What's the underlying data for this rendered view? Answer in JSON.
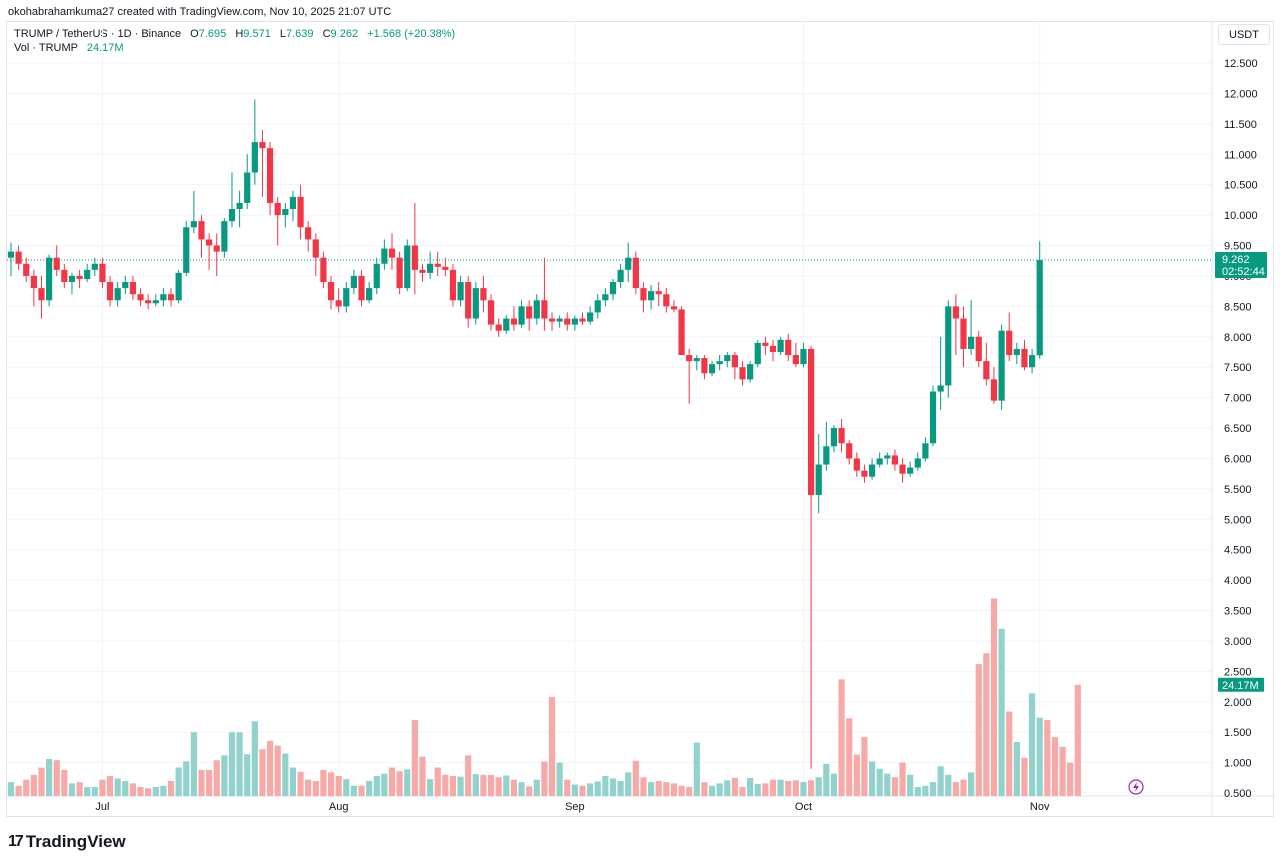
{
  "header": {
    "attribution": "okohabrahamkuma27 created with TradingView.com, Nov 10, 2025 21:07 UTC"
  },
  "legend": {
    "symbol": "TRUMP / TetherUS · 1D · Binance",
    "o_label": "O",
    "o_value": "7.695",
    "h_label": "H",
    "h_value": "9.571",
    "l_label": "L",
    "l_value": "7.639",
    "c_label": "C",
    "c_value": "9.262",
    "change": "+1.568 (+20.38%)",
    "vol_label": "Vol · TRUMP",
    "vol_value": "24.17M"
  },
  "unit_button": "USDT",
  "brand": {
    "name": "TradingView",
    "logo_text": "17"
  },
  "colors": {
    "up": "#089981",
    "down": "#f23645",
    "vol_up": "#92d2cc",
    "vol_down": "#f7a9a7"
  },
  "chart_data": {
    "type": "candlestick",
    "y_ticks": [
      "12.500",
      "12.000",
      "11.500",
      "11.000",
      "10.500",
      "10.000",
      "9.500",
      "9.000",
      "8.500",
      "8.000",
      "7.500",
      "7.000",
      "6.500",
      "6.000",
      "5.500",
      "5.000",
      "4.500",
      "4.000",
      "3.500",
      "3.000",
      "2.500",
      "2.000",
      "1.500",
      "1.000",
      "0.500"
    ],
    "ylim": [
      0.4,
      12.9
    ],
    "x_ticks": [
      {
        "label": "Jul",
        "index": 12
      },
      {
        "label": "Aug",
        "index": 43
      },
      {
        "label": "Sep",
        "index": 74
      },
      {
        "label": "Oct",
        "index": 104
      },
      {
        "label": "Nov",
        "index": 135
      }
    ],
    "last_price": {
      "value": 9.262,
      "label": "9.262",
      "countdown": "02:52:44"
    },
    "last_volume": {
      "value": 2.28,
      "label": "24.17M"
    },
    "ohlc": [
      [
        9.3,
        9.55,
        9.0,
        9.4
      ],
      [
        9.4,
        9.5,
        9.1,
        9.2
      ],
      [
        9.2,
        9.3,
        8.9,
        9.0
      ],
      [
        9.0,
        9.1,
        8.5,
        8.8
      ],
      [
        8.8,
        9.0,
        8.3,
        8.6
      ],
      [
        8.6,
        9.35,
        8.5,
        9.3
      ],
      [
        9.3,
        9.5,
        9.0,
        9.1
      ],
      [
        9.1,
        9.2,
        8.8,
        8.9
      ],
      [
        8.9,
        9.05,
        8.7,
        9.0
      ],
      [
        9.0,
        9.1,
        8.8,
        8.95
      ],
      [
        8.95,
        9.2,
        8.9,
        9.1
      ],
      [
        9.1,
        9.3,
        9.0,
        9.2
      ],
      [
        9.2,
        9.3,
        8.8,
        8.9
      ],
      [
        8.9,
        9.0,
        8.5,
        8.6
      ],
      [
        8.6,
        8.9,
        8.5,
        8.8
      ],
      [
        8.8,
        9.0,
        8.7,
        8.9
      ],
      [
        8.9,
        9.0,
        8.6,
        8.7
      ],
      [
        8.7,
        8.8,
        8.5,
        8.6
      ],
      [
        8.6,
        8.7,
        8.45,
        8.55
      ],
      [
        8.55,
        8.7,
        8.5,
        8.6
      ],
      [
        8.6,
        8.8,
        8.5,
        8.7
      ],
      [
        8.7,
        8.8,
        8.5,
        8.6
      ],
      [
        8.6,
        9.1,
        8.55,
        9.05
      ],
      [
        9.05,
        9.9,
        9.0,
        9.8
      ],
      [
        9.8,
        10.4,
        9.7,
        9.9
      ],
      [
        9.9,
        10.0,
        9.3,
        9.6
      ],
      [
        9.6,
        9.7,
        9.1,
        9.5
      ],
      [
        9.5,
        9.7,
        9.0,
        9.4
      ],
      [
        9.4,
        9.95,
        9.3,
        9.9
      ],
      [
        9.9,
        10.7,
        9.8,
        10.1
      ],
      [
        10.1,
        10.4,
        9.8,
        10.2
      ],
      [
        10.2,
        11.0,
        10.1,
        10.7
      ],
      [
        10.7,
        11.9,
        10.5,
        11.2
      ],
      [
        11.2,
        11.4,
        10.3,
        11.1
      ],
      [
        11.1,
        11.2,
        10.0,
        10.2
      ],
      [
        10.2,
        10.3,
        9.5,
        10.0
      ],
      [
        10.0,
        10.2,
        9.8,
        10.1
      ],
      [
        10.1,
        10.4,
        9.9,
        10.3
      ],
      [
        10.3,
        10.5,
        9.6,
        9.8
      ],
      [
        9.8,
        9.9,
        9.4,
        9.6
      ],
      [
        9.6,
        9.7,
        9.0,
        9.3
      ],
      [
        9.3,
        9.4,
        8.8,
        8.9
      ],
      [
        8.9,
        9.0,
        8.45,
        8.6
      ],
      [
        8.6,
        8.8,
        8.4,
        8.5
      ],
      [
        8.5,
        8.9,
        8.4,
        8.8
      ],
      [
        8.8,
        9.1,
        8.7,
        9.0
      ],
      [
        9.0,
        9.1,
        8.5,
        8.6
      ],
      [
        8.6,
        8.9,
        8.55,
        8.8
      ],
      [
        8.8,
        9.3,
        8.7,
        9.2
      ],
      [
        9.2,
        9.6,
        9.1,
        9.45
      ],
      [
        9.45,
        9.7,
        9.1,
        9.3
      ],
      [
        9.3,
        9.4,
        8.7,
        8.8
      ],
      [
        8.8,
        9.6,
        8.75,
        9.5
      ],
      [
        9.5,
        10.2,
        8.7,
        9.1
      ],
      [
        9.1,
        9.2,
        8.9,
        9.05
      ],
      [
        9.05,
        9.4,
        8.95,
        9.2
      ],
      [
        9.2,
        9.4,
        9.0,
        9.15
      ],
      [
        9.15,
        9.3,
        9.0,
        9.1
      ],
      [
        9.1,
        9.2,
        8.5,
        8.6
      ],
      [
        8.6,
        9.0,
        8.5,
        8.9
      ],
      [
        8.9,
        9.0,
        8.15,
        8.3
      ],
      [
        8.3,
        8.9,
        8.2,
        8.8
      ],
      [
        8.8,
        9.0,
        8.4,
        8.6
      ],
      [
        8.6,
        8.7,
        8.1,
        8.2
      ],
      [
        8.2,
        8.3,
        8.0,
        8.1
      ],
      [
        8.1,
        8.35,
        8.05,
        8.3
      ],
      [
        8.3,
        8.5,
        8.1,
        8.2
      ],
      [
        8.2,
        8.6,
        8.15,
        8.5
      ],
      [
        8.5,
        8.6,
        8.1,
        8.3
      ],
      [
        8.3,
        8.7,
        8.2,
        8.6
      ],
      [
        8.6,
        9.3,
        8.1,
        8.3
      ],
      [
        8.3,
        8.4,
        8.1,
        8.25
      ],
      [
        8.25,
        8.35,
        8.15,
        8.3
      ],
      [
        8.3,
        8.4,
        8.1,
        8.2
      ],
      [
        8.2,
        8.35,
        8.1,
        8.3
      ],
      [
        8.3,
        8.4,
        8.2,
        8.25
      ],
      [
        8.25,
        8.5,
        8.2,
        8.4
      ],
      [
        8.4,
        8.7,
        8.3,
        8.6
      ],
      [
        8.6,
        8.8,
        8.5,
        8.7
      ],
      [
        8.7,
        8.95,
        8.6,
        8.9
      ],
      [
        8.9,
        9.2,
        8.8,
        9.1
      ],
      [
        9.1,
        9.55,
        8.9,
        9.3
      ],
      [
        9.3,
        9.4,
        8.7,
        8.8
      ],
      [
        8.8,
        8.9,
        8.4,
        8.6
      ],
      [
        8.6,
        8.85,
        8.45,
        8.75
      ],
      [
        8.75,
        8.9,
        8.5,
        8.7
      ],
      [
        8.7,
        8.8,
        8.4,
        8.5
      ],
      [
        8.5,
        8.6,
        8.4,
        8.45
      ],
      [
        8.45,
        8.5,
        7.7,
        7.7
      ],
      [
        7.7,
        7.8,
        6.9,
        7.6
      ],
      [
        7.6,
        7.7,
        7.45,
        7.65
      ],
      [
        7.65,
        7.7,
        7.3,
        7.4
      ],
      [
        7.4,
        7.6,
        7.35,
        7.55
      ],
      [
        7.55,
        7.7,
        7.45,
        7.6
      ],
      [
        7.6,
        7.75,
        7.5,
        7.7
      ],
      [
        7.7,
        7.75,
        7.3,
        7.5
      ],
      [
        7.5,
        7.6,
        7.2,
        7.3
      ],
      [
        7.3,
        7.6,
        7.25,
        7.55
      ],
      [
        7.55,
        7.95,
        7.5,
        7.9
      ],
      [
        7.9,
        8.0,
        7.7,
        7.85
      ],
      [
        7.85,
        7.95,
        7.6,
        7.75
      ],
      [
        7.75,
        8.0,
        7.7,
        7.95
      ],
      [
        7.95,
        8.05,
        7.6,
        7.7
      ],
      [
        7.7,
        7.9,
        7.5,
        7.55
      ],
      [
        7.55,
        7.9,
        7.5,
        7.8
      ],
      [
        7.8,
        7.85,
        0.9,
        5.4
      ],
      [
        5.4,
        6.4,
        5.1,
        5.9
      ],
      [
        5.9,
        6.6,
        5.8,
        6.2
      ],
      [
        6.2,
        6.55,
        6.1,
        6.5
      ],
      [
        6.5,
        6.65,
        6.1,
        6.25
      ],
      [
        6.25,
        6.3,
        5.9,
        6.0
      ],
      [
        6.0,
        6.1,
        5.7,
        5.8
      ],
      [
        5.8,
        5.9,
        5.6,
        5.7
      ],
      [
        5.7,
        6.0,
        5.65,
        5.9
      ],
      [
        5.9,
        6.1,
        5.85,
        6.0
      ],
      [
        6.0,
        6.1,
        5.9,
        6.05
      ],
      [
        6.05,
        6.15,
        5.8,
        5.9
      ],
      [
        5.9,
        6.0,
        5.6,
        5.75
      ],
      [
        5.75,
        5.95,
        5.7,
        5.85
      ],
      [
        5.85,
        6.1,
        5.8,
        6.0
      ],
      [
        6.0,
        6.35,
        5.95,
        6.25
      ],
      [
        6.25,
        7.2,
        6.2,
        7.1
      ],
      [
        7.1,
        8.0,
        6.8,
        7.2
      ],
      [
        7.2,
        8.6,
        7.0,
        8.5
      ],
      [
        8.5,
        8.7,
        7.7,
        8.3
      ],
      [
        8.3,
        8.5,
        7.5,
        7.8
      ],
      [
        7.8,
        8.6,
        7.7,
        8.0
      ],
      [
        8.0,
        8.1,
        7.5,
        7.6
      ],
      [
        7.6,
        7.9,
        7.2,
        7.3
      ],
      [
        7.3,
        7.5,
        6.9,
        6.95
      ],
      [
        6.95,
        8.2,
        6.8,
        8.1
      ],
      [
        8.1,
        8.4,
        7.6,
        7.7
      ],
      [
        7.7,
        7.9,
        7.55,
        7.8
      ],
      [
        7.8,
        7.95,
        7.45,
        7.5
      ],
      [
        7.5,
        7.8,
        7.4,
        7.7
      ],
      [
        7.695,
        9.571,
        7.639,
        9.262
      ]
    ],
    "volume": [
      0.68,
      0.62,
      0.72,
      0.8,
      0.92,
      1.06,
      1.04,
      0.88,
      0.66,
      0.68,
      0.6,
      0.6,
      0.72,
      0.78,
      0.74,
      0.7,
      0.66,
      0.6,
      0.58,
      0.6,
      0.62,
      0.7,
      0.92,
      1.02,
      1.5,
      0.88,
      0.88,
      1.04,
      1.12,
      1.5,
      1.5,
      1.14,
      1.68,
      1.22,
      1.36,
      1.28,
      1.15,
      0.92,
      0.85,
      0.72,
      0.7,
      0.88,
      0.84,
      0.78,
      0.73,
      0.62,
      0.62,
      0.7,
      0.78,
      0.82,
      0.92,
      0.86,
      0.89,
      1.7,
      1.1,
      0.73,
      0.92,
      0.8,
      0.78,
      0.77,
      1.12,
      0.81,
      0.8,
      0.8,
      0.76,
      0.79,
      0.72,
      0.68,
      0.61,
      0.72,
      1.02,
      2.08,
      1.0,
      0.72,
      0.64,
      0.62,
      0.66,
      0.69,
      0.78,
      0.74,
      0.7,
      0.84,
      1.03,
      0.76,
      0.68,
      0.7,
      0.68,
      0.66,
      0.62,
      0.6,
      1.33,
      0.68,
      0.62,
      0.66,
      0.71,
      0.75,
      0.6,
      0.75,
      0.65,
      0.66,
      0.72,
      0.72,
      0.7,
      0.71,
      0.68,
      0.71,
      0.76,
      0.98,
      0.82,
      2.37,
      1.73,
      1.13,
      1.42,
      1.02,
      0.9,
      0.82,
      0.76,
      1.0,
      0.8,
      0.6,
      0.62,
      0.68,
      0.94,
      0.8,
      0.68,
      0.72,
      0.84,
      2.62,
      2.8,
      3.7,
      3.2,
      1.84,
      1.34,
      1.08,
      2.14,
      1.74,
      1.7,
      1.42,
      1.26,
      1.0,
      2.28
    ]
  }
}
